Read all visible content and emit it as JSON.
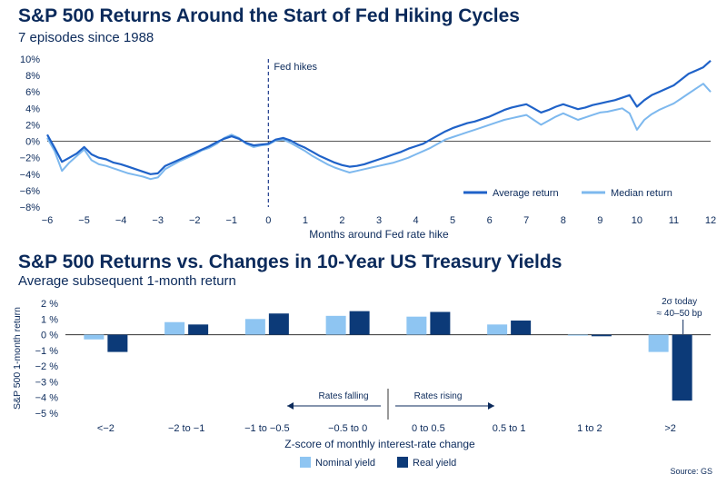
{
  "chart_data": [
    {
      "type": "line",
      "title": "S&P 500 Returns Around the Start of Fed Hiking Cycles",
      "subtitle": "7 episodes since 1988",
      "xlabel": "Months around Fed rate hike",
      "ylabel": "",
      "xlim": [
        -6,
        12
      ],
      "ylim": [
        -8,
        10
      ],
      "x_ticks": [
        "−6",
        "−5",
        "−4",
        "−3",
        "−2",
        "−1",
        "0",
        "1",
        "2",
        "3",
        "4",
        "5",
        "6",
        "7",
        "8",
        "9",
        "10",
        "11",
        "12"
      ],
      "y_ticks": [
        "10%",
        "8%",
        "6%",
        "4%",
        "2%",
        "0%",
        "−2%",
        "−4%",
        "−6%",
        "−8%"
      ],
      "annotation": "Fed hikes",
      "legend_position": "bottom-right",
      "colors": {
        "average": "#1f62c8",
        "median": "#7db8ee",
        "zero_line": "#555555",
        "marker": "#1f3c8c"
      },
      "series": [
        {
          "name": "Average return",
          "points": [
            [
              -6,
              0.8
            ],
            [
              -5.8,
              -0.8
            ],
            [
              -5.6,
              -2.5
            ],
            [
              -5.4,
              -2.0
            ],
            [
              -5.2,
              -1.5
            ],
            [
              -5,
              -0.7
            ],
            [
              -4.8,
              -1.6
            ],
            [
              -4.6,
              -2.0
            ],
            [
              -4.4,
              -2.2
            ],
            [
              -4.2,
              -2.6
            ],
            [
              -4,
              -2.8
            ],
            [
              -3.8,
              -3.1
            ],
            [
              -3.6,
              -3.4
            ],
            [
              -3.4,
              -3.7
            ],
            [
              -3.2,
              -4.0
            ],
            [
              -3,
              -3.9
            ],
            [
              -2.8,
              -3.0
            ],
            [
              -2.6,
              -2.6
            ],
            [
              -2.4,
              -2.2
            ],
            [
              -2.2,
              -1.8
            ],
            [
              -2,
              -1.4
            ],
            [
              -1.8,
              -1.0
            ],
            [
              -1.6,
              -0.6
            ],
            [
              -1.4,
              -0.1
            ],
            [
              -1.2,
              0.3
            ],
            [
              -1,
              0.6
            ],
            [
              -0.8,
              0.3
            ],
            [
              -0.6,
              -0.2
            ],
            [
              -0.4,
              -0.5
            ],
            [
              -0.2,
              -0.4
            ],
            [
              0,
              -0.3
            ],
            [
              0.2,
              0.2
            ],
            [
              0.4,
              0.4
            ],
            [
              0.6,
              0.1
            ],
            [
              0.8,
              -0.4
            ],
            [
              1,
              -0.8
            ],
            [
              1.2,
              -1.3
            ],
            [
              1.4,
              -1.8
            ],
            [
              1.6,
              -2.2
            ],
            [
              1.8,
              -2.6
            ],
            [
              2,
              -2.9
            ],
            [
              2.2,
              -3.1
            ],
            [
              2.4,
              -3.0
            ],
            [
              2.6,
              -2.8
            ],
            [
              2.8,
              -2.5
            ],
            [
              3,
              -2.2
            ],
            [
              3.2,
              -1.9
            ],
            [
              3.4,
              -1.6
            ],
            [
              3.6,
              -1.3
            ],
            [
              3.8,
              -0.9
            ],
            [
              4,
              -0.6
            ],
            [
              4.2,
              -0.3
            ],
            [
              4.4,
              0.2
            ],
            [
              4.6,
              0.7
            ],
            [
              4.8,
              1.2
            ],
            [
              5,
              1.6
            ],
            [
              5.2,
              1.9
            ],
            [
              5.4,
              2.2
            ],
            [
              5.6,
              2.4
            ],
            [
              5.8,
              2.7
            ],
            [
              6,
              3.0
            ],
            [
              6.2,
              3.4
            ],
            [
              6.4,
              3.8
            ],
            [
              6.6,
              4.1
            ],
            [
              6.8,
              4.3
            ],
            [
              7,
              4.5
            ],
            [
              7.2,
              4.0
            ],
            [
              7.4,
              3.5
            ],
            [
              7.6,
              3.8
            ],
            [
              7.8,
              4.2
            ],
            [
              8,
              4.5
            ],
            [
              8.2,
              4.2
            ],
            [
              8.4,
              3.9
            ],
            [
              8.6,
              4.1
            ],
            [
              8.8,
              4.4
            ],
            [
              9,
              4.6
            ],
            [
              9.2,
              4.8
            ],
            [
              9.4,
              5.0
            ],
            [
              9.6,
              5.3
            ],
            [
              9.8,
              5.6
            ],
            [
              10,
              4.2
            ],
            [
              10.2,
              5.0
            ],
            [
              10.4,
              5.6
            ],
            [
              10.6,
              6.0
            ],
            [
              10.8,
              6.4
            ],
            [
              11,
              6.8
            ],
            [
              11.2,
              7.5
            ],
            [
              11.4,
              8.2
            ],
            [
              11.6,
              8.6
            ],
            [
              11.8,
              9.0
            ],
            [
              12,
              9.8
            ]
          ]
        },
        {
          "name": "Median return",
          "points": [
            [
              -6,
              0.4
            ],
            [
              -5.8,
              -1.2
            ],
            [
              -5.6,
              -3.6
            ],
            [
              -5.4,
              -2.6
            ],
            [
              -5.2,
              -1.8
            ],
            [
              -5,
              -1.0
            ],
            [
              -4.8,
              -2.3
            ],
            [
              -4.6,
              -2.8
            ],
            [
              -4.4,
              -3.0
            ],
            [
              -4.2,
              -3.3
            ],
            [
              -4,
              -3.6
            ],
            [
              -3.8,
              -3.9
            ],
            [
              -3.6,
              -4.1
            ],
            [
              -3.4,
              -4.3
            ],
            [
              -3.2,
              -4.6
            ],
            [
              -3,
              -4.4
            ],
            [
              -2.8,
              -3.4
            ],
            [
              -2.6,
              -2.9
            ],
            [
              -2.4,
              -2.4
            ],
            [
              -2.2,
              -2.0
            ],
            [
              -2,
              -1.6
            ],
            [
              -1.8,
              -1.1
            ],
            [
              -1.6,
              -0.8
            ],
            [
              -1.4,
              -0.3
            ],
            [
              -1.2,
              0.4
            ],
            [
              -1,
              0.8
            ],
            [
              -0.8,
              0.4
            ],
            [
              -0.6,
              -0.3
            ],
            [
              -0.4,
              -0.7
            ],
            [
              -0.2,
              -0.5
            ],
            [
              0,
              -0.4
            ],
            [
              0.2,
              0.1
            ],
            [
              0.4,
              0.2
            ],
            [
              0.6,
              -0.2
            ],
            [
              0.8,
              -0.7
            ],
            [
              1,
              -1.2
            ],
            [
              1.2,
              -1.8
            ],
            [
              1.4,
              -2.3
            ],
            [
              1.6,
              -2.8
            ],
            [
              1.8,
              -3.2
            ],
            [
              2,
              -3.5
            ],
            [
              2.2,
              -3.8
            ],
            [
              2.4,
              -3.6
            ],
            [
              2.6,
              -3.4
            ],
            [
              2.8,
              -3.2
            ],
            [
              3,
              -3.0
            ],
            [
              3.2,
              -2.8
            ],
            [
              3.4,
              -2.6
            ],
            [
              3.6,
              -2.3
            ],
            [
              3.8,
              -2.0
            ],
            [
              4,
              -1.6
            ],
            [
              4.2,
              -1.2
            ],
            [
              4.4,
              -0.8
            ],
            [
              4.6,
              -0.3
            ],
            [
              4.8,
              0.2
            ],
            [
              5,
              0.5
            ],
            [
              5.2,
              0.8
            ],
            [
              5.4,
              1.1
            ],
            [
              5.6,
              1.4
            ],
            [
              5.8,
              1.7
            ],
            [
              6,
              2.0
            ],
            [
              6.2,
              2.3
            ],
            [
              6.4,
              2.6
            ],
            [
              6.6,
              2.8
            ],
            [
              6.8,
              3.0
            ],
            [
              7,
              3.2
            ],
            [
              7.2,
              2.6
            ],
            [
              7.4,
              2.0
            ],
            [
              7.6,
              2.5
            ],
            [
              7.8,
              3.0
            ],
            [
              8,
              3.4
            ],
            [
              8.2,
              3.0
            ],
            [
              8.4,
              2.6
            ],
            [
              8.6,
              2.9
            ],
            [
              8.8,
              3.2
            ],
            [
              9,
              3.5
            ],
            [
              9.2,
              3.6
            ],
            [
              9.4,
              3.8
            ],
            [
              9.6,
              4.0
            ],
            [
              9.8,
              3.4
            ],
            [
              10,
              1.4
            ],
            [
              10.2,
              2.6
            ],
            [
              10.4,
              3.3
            ],
            [
              10.6,
              3.8
            ],
            [
              10.8,
              4.2
            ],
            [
              11,
              4.6
            ],
            [
              11.2,
              5.2
            ],
            [
              11.4,
              5.8
            ],
            [
              11.6,
              6.4
            ],
            [
              11.8,
              7.0
            ],
            [
              12,
              6.0
            ]
          ]
        }
      ]
    },
    {
      "type": "bar",
      "title": "S&P 500 Returns vs. Changes in 10-Year US Treasury Yields",
      "subtitle": "Average subsequent 1-month return",
      "xlabel": "Z-score of monthly interest-rate change",
      "ylabel": "S&P 500 1-month return",
      "ylim": [
        -5,
        2
      ],
      "y_ticks": [
        "2 %",
        "1 %",
        "0 %",
        "−1 %",
        "−2 %",
        "−3 %",
        "−4 %",
        "−5 %"
      ],
      "categories": [
        "<−2",
        "−2 to −1",
        "−1 to −0.5",
        "−0.5 to 0",
        "0 to 0.5",
        "0.5 to 1",
        "1 to 2",
        ">2"
      ],
      "series": [
        {
          "name": "Nominal yield",
          "color": "#8ec5f2",
          "values": [
            -0.3,
            0.8,
            1.0,
            1.2,
            1.15,
            0.65,
            -0.05,
            -1.1
          ]
        },
        {
          "name": "Real yield",
          "color": "#0c3a78",
          "values": [
            -1.1,
            0.65,
            1.35,
            1.5,
            1.45,
            0.9,
            -0.1,
            -4.2
          ]
        }
      ],
      "annotations": {
        "falling": "Rates falling",
        "rising": "Rates rising",
        "callout": [
          "2σ today",
          "≈ 40–50 bp"
        ]
      },
      "legend_position": "bottom-center"
    }
  ],
  "source": "Source: GS"
}
